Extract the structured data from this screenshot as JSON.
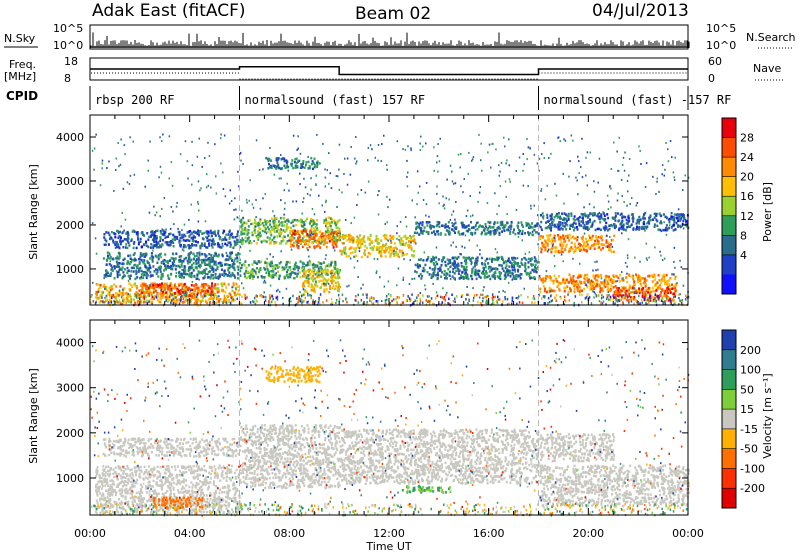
{
  "header": {
    "site": "Adak East (fitACF)",
    "beam": "Beam 02",
    "date": "04/Jul/2013"
  },
  "noise_panel": {
    "left_label": "N.Sky",
    "right_label": "N.Search",
    "left_ticks": [
      "10^5",
      "10^0"
    ],
    "right_ticks": [
      "10^5",
      "10^0"
    ]
  },
  "freq_panel": {
    "left_label_1": "Freq.",
    "left_label_2": "[MHz]",
    "left_ticks": [
      "18",
      "8"
    ],
    "right_label": "Nave",
    "right_ticks": [
      "60",
      "0"
    ]
  },
  "cpid_panel": {
    "label": "CPID",
    "segments": [
      {
        "start_hour": 0,
        "end_hour": 6,
        "name": "rbsp 200 RF"
      },
      {
        "start_hour": 6,
        "end_hour": 18,
        "name": "normalsound (fast) 157 RF"
      },
      {
        "start_hour": 18,
        "end_hour": 24,
        "name": "normalsound (fast) -157 RF"
      }
    ]
  },
  "x_axis": {
    "label": "Time UT",
    "ticks": [
      "00:00",
      "04:00",
      "08:00",
      "12:00",
      "16:00",
      "20:00",
      "00:00"
    ]
  },
  "power_panel": {
    "ylabel": "Slant Range [km]",
    "yticks": [
      "4000",
      "3000",
      "2000",
      "1000"
    ],
    "colorbar_label": "Power [dB]",
    "colorbar_ticks": [
      "28",
      "24",
      "20",
      "16",
      "12",
      "8",
      "4"
    ],
    "colorbar_colors": [
      "#e8000b",
      "#ff4d00",
      "#ff8c00",
      "#ffbf00",
      "#9bd12e",
      "#2e9e5b",
      "#2a6c8c",
      "#2040c8",
      "#1010ff"
    ]
  },
  "velocity_panel": {
    "ylabel": "Slant Range [km]",
    "yticks": [
      "4000",
      "3000",
      "2000",
      "1000"
    ],
    "colorbar_label": "Velocity [m s⁻¹]",
    "colorbar_ticks": [
      "200",
      "100",
      "50",
      "15",
      "-15",
      "-50",
      "-100",
      "-200"
    ],
    "colorbar_colors": [
      "#2040b0",
      "#2f7d8e",
      "#2e9e5b",
      "#7dcf3a",
      "#c8c8c0",
      "#ffb000",
      "#ff7000",
      "#ff3000",
      "#e00000"
    ]
  },
  "chart_data": {
    "type": "heatmap",
    "x_unit": "hours UT",
    "xlim": [
      0,
      24
    ],
    "ylim_km": [
      180,
      4500
    ],
    "frequency_mhz": [
      {
        "start": 0,
        "end": 6,
        "value": 13
      },
      {
        "start": 6,
        "end": 10,
        "value": 14
      },
      {
        "start": 10,
        "end": 18,
        "value": 10.5
      },
      {
        "start": 18,
        "end": 24,
        "value": 13
      }
    ],
    "power_regions": [
      {
        "t0": 0.2,
        "t1": 6.0,
        "r0": 250,
        "r1": 700,
        "level": 20
      },
      {
        "t0": 2.0,
        "t1": 5.0,
        "r0": 400,
        "r1": 700,
        "level": 26
      },
      {
        "t0": 0.5,
        "t1": 6.0,
        "r0": 800,
        "r1": 1400,
        "level": 8
      },
      {
        "t0": 0.5,
        "t1": 6.0,
        "r0": 1500,
        "r1": 1900,
        "level": 6
      },
      {
        "t0": 6.0,
        "t1": 10.0,
        "r0": 1600,
        "r1": 2200,
        "level": 14
      },
      {
        "t0": 8.0,
        "t1": 10.0,
        "r0": 1500,
        "r1": 1900,
        "level": 24
      },
      {
        "t0": 6.0,
        "t1": 10.0,
        "r0": 800,
        "r1": 1200,
        "level": 12
      },
      {
        "t0": 8.5,
        "t1": 10.0,
        "r0": 500,
        "r1": 1000,
        "level": 18
      },
      {
        "t0": 7.0,
        "t1": 9.2,
        "r0": 3300,
        "r1": 3550,
        "level": 8
      },
      {
        "t0": 10.0,
        "t1": 13.0,
        "r0": 1300,
        "r1": 1800,
        "level": 18
      },
      {
        "t0": 13.0,
        "t1": 18.0,
        "r0": 800,
        "r1": 1300,
        "level": 8
      },
      {
        "t0": 13.0,
        "t1": 18.0,
        "r0": 1800,
        "r1": 2100,
        "level": 8
      },
      {
        "t0": 18.0,
        "t1": 21.0,
        "r0": 1400,
        "r1": 1800,
        "level": 22
      },
      {
        "t0": 18.0,
        "t1": 23.5,
        "r0": 500,
        "r1": 900,
        "level": 22
      },
      {
        "t0": 21.0,
        "t1": 23.5,
        "r0": 300,
        "r1": 600,
        "level": 26
      },
      {
        "t0": 18.0,
        "t1": 24.0,
        "r0": 1900,
        "r1": 2300,
        "level": 6
      }
    ],
    "velocity_regions": [
      {
        "t0": 0.2,
        "t1": 6.0,
        "r0": 250,
        "r1": 1300,
        "value": 0
      },
      {
        "t0": 2.5,
        "t1": 4.5,
        "r0": 350,
        "r1": 600,
        "value": -70
      },
      {
        "t0": 0.5,
        "t1": 6.0,
        "r0": 1500,
        "r1": 1900,
        "value": 0
      },
      {
        "t0": 6.0,
        "t1": 10.0,
        "r0": 800,
        "r1": 2200,
        "value": 0
      },
      {
        "t0": 7.0,
        "t1": 9.2,
        "r0": 3150,
        "r1": 3500,
        "value": -40
      },
      {
        "t0": 10.0,
        "t1": 18.0,
        "r0": 900,
        "r1": 2100,
        "value": 0
      },
      {
        "t0": 12.5,
        "t1": 14.5,
        "r0": 700,
        "r1": 850,
        "value": 30
      },
      {
        "t0": 18.0,
        "t1": 24.0,
        "r0": 400,
        "r1": 1300,
        "value": 0
      },
      {
        "t0": 18.0,
        "t1": 21.0,
        "r0": 1400,
        "r1": 2000,
        "value": 0
      }
    ]
  }
}
